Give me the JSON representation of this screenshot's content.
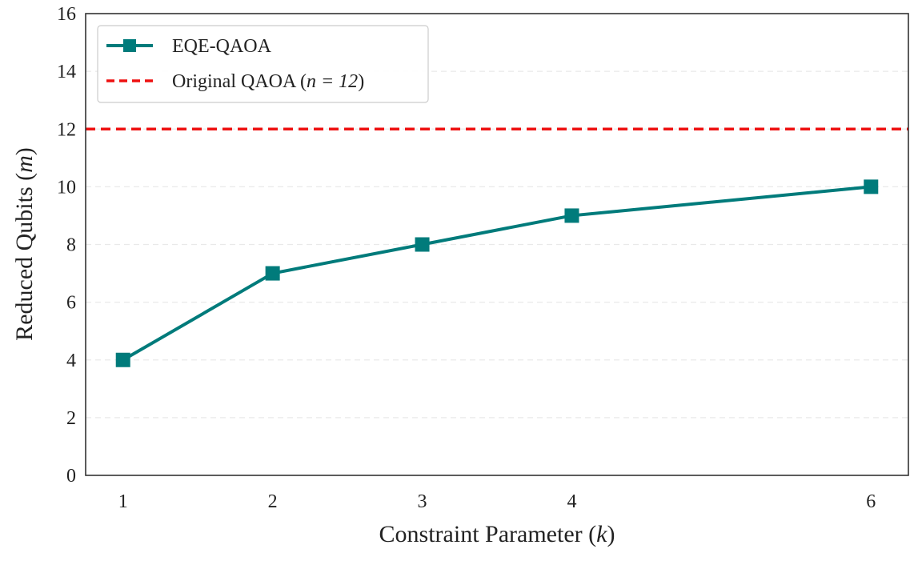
{
  "chart_data": {
    "type": "line",
    "x": [
      1,
      2,
      3,
      4,
      6
    ],
    "xticks": [
      1,
      2,
      3,
      4,
      6
    ],
    "xlabel": "Constraint Parameter (k)",
    "xlabel_parts": {
      "prefix": "Constraint Parameter (",
      "var": "k",
      "suffix": ")"
    },
    "ylabel": "Reduced Qubits (m)",
    "ylabel_parts": {
      "prefix": "Reduced Qubits (",
      "var": "m",
      "suffix": ")"
    },
    "ylim": [
      0,
      16
    ],
    "yticks": [
      0,
      2,
      4,
      6,
      8,
      10,
      12,
      14,
      16
    ],
    "xlim": [
      0.75,
      6.25
    ],
    "grid": "horizontal-dashed",
    "legend_position": "top-left",
    "series": [
      {
        "name": "EQE-QAOA",
        "kind": "line-marker",
        "marker": "square",
        "color": "#007b7b",
        "values": [
          4,
          7,
          8,
          9,
          10
        ]
      }
    ],
    "reference_lines": [
      {
        "name": "Original QAOA (n = 12)",
        "legend_parts": {
          "prefix": "Original QAOA (",
          "math": "n = 12",
          "suffix": ")"
        },
        "kind": "horizontal-dashed",
        "color": "#ee1111",
        "y": 12
      }
    ]
  }
}
